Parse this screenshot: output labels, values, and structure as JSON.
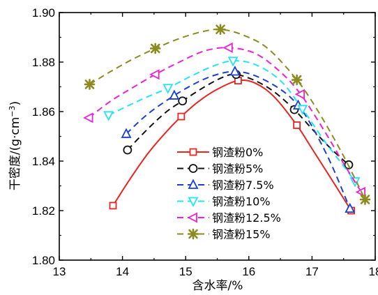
{
  "chart_data": {
    "type": "line",
    "xlabel": "含水率/%",
    "ylabel_main": "干密度/(g·cm",
    "ylabel_sup": "−3",
    "ylabel_close": ")",
    "xlim": [
      13,
      18
    ],
    "ylim": [
      1.8,
      1.9
    ],
    "xticks": [
      "13",
      "14",
      "15",
      "16",
      "17",
      "18"
    ],
    "yticks": [
      "1.80",
      "1.82",
      "1.84",
      "1.86",
      "1.88",
      "1.90"
    ],
    "legend_position": "center-right",
    "series": [
      {
        "name": "钢渣粉0%",
        "color": "#e8251f",
        "marker": "square",
        "line": "solid",
        "x": [
          13.85,
          14.93,
          15.83,
          16.76,
          17.62
        ],
        "y": [
          1.822,
          1.858,
          1.8725,
          1.8545,
          1.82
        ],
        "curve": [
          [
            13.85,
            1.822
          ],
          [
            14.1,
            1.832
          ],
          [
            14.4,
            1.843
          ],
          [
            14.7,
            1.852
          ],
          [
            14.93,
            1.858
          ],
          [
            15.2,
            1.864
          ],
          [
            15.5,
            1.869
          ],
          [
            15.83,
            1.8725
          ],
          [
            16.1,
            1.8715
          ],
          [
            16.4,
            1.866
          ],
          [
            16.76,
            1.8545
          ],
          [
            17.0,
            1.845
          ],
          [
            17.3,
            1.833
          ],
          [
            17.62,
            1.82
          ]
        ]
      },
      {
        "name": "钢渣粉5%",
        "color": "#111111",
        "marker": "circle",
        "line": "dashed",
        "x": [
          14.08,
          14.95,
          15.8,
          16.72,
          17.58
        ],
        "y": [
          1.8445,
          1.8643,
          1.875,
          1.8608,
          1.8385
        ],
        "curve": [
          [
            14.08,
            1.8445
          ],
          [
            14.4,
            1.853
          ],
          [
            14.7,
            1.86
          ],
          [
            14.95,
            1.8643
          ],
          [
            15.3,
            1.87
          ],
          [
            15.6,
            1.874
          ],
          [
            15.8,
            1.875
          ],
          [
            16.1,
            1.8725
          ],
          [
            16.4,
            1.868
          ],
          [
            16.72,
            1.8608
          ],
          [
            17.0,
            1.853
          ],
          [
            17.3,
            1.845
          ],
          [
            17.58,
            1.8385
          ]
        ]
      },
      {
        "name": "钢渣粉7.5%",
        "color": "#1a3fd6",
        "marker": "triangle-up",
        "line": "dashed",
        "x": [
          14.06,
          14.82,
          15.78,
          16.78,
          17.6
        ],
        "y": [
          1.851,
          1.8665,
          1.8762,
          1.8625,
          1.8208
        ],
        "curve": [
          [
            14.06,
            1.851
          ],
          [
            14.4,
            1.859
          ],
          [
            14.82,
            1.8665
          ],
          [
            15.2,
            1.872
          ],
          [
            15.5,
            1.875
          ],
          [
            15.78,
            1.8762
          ],
          [
            16.1,
            1.8745
          ],
          [
            16.5,
            1.869
          ],
          [
            16.78,
            1.8625
          ],
          [
            17.0,
            1.854
          ],
          [
            17.3,
            1.839
          ],
          [
            17.6,
            1.8208
          ]
        ]
      },
      {
        "name": "钢渣粉10%",
        "color": "#22e4f2",
        "marker": "triangle-down",
        "line": "dashed",
        "x": [
          13.78,
          14.72,
          15.75,
          16.85,
          17.68
        ],
        "y": [
          1.8585,
          1.8695,
          1.8805,
          1.861,
          1.8318
        ],
        "curve": [
          [
            13.78,
            1.8585
          ],
          [
            14.1,
            1.8625
          ],
          [
            14.4,
            1.866
          ],
          [
            14.72,
            1.8695
          ],
          [
            15.1,
            1.8745
          ],
          [
            15.45,
            1.8785
          ],
          [
            15.75,
            1.8805
          ],
          [
            16.1,
            1.879
          ],
          [
            16.5,
            1.8725
          ],
          [
            16.85,
            1.861
          ],
          [
            17.2,
            1.848
          ],
          [
            17.5,
            1.838
          ],
          [
            17.68,
            1.8318
          ]
        ]
      },
      {
        "name": "钢渣粉12.5%",
        "color": "#ef1fd6",
        "marker": "triangle-left",
        "line": "dashed",
        "x": [
          13.47,
          14.52,
          15.68,
          16.82,
          17.78
        ],
        "y": [
          1.8575,
          1.875,
          1.8858,
          1.867,
          1.8275
        ],
        "curve": [
          [
            13.47,
            1.8575
          ],
          [
            13.8,
            1.864
          ],
          [
            14.15,
            1.8695
          ],
          [
            14.52,
            1.875
          ],
          [
            14.9,
            1.88
          ],
          [
            15.3,
            1.8845
          ],
          [
            15.68,
            1.8858
          ],
          [
            16.1,
            1.8835
          ],
          [
            16.5,
            1.876
          ],
          [
            16.82,
            1.867
          ],
          [
            17.2,
            1.852
          ],
          [
            17.5,
            1.839
          ],
          [
            17.78,
            1.8275
          ]
        ]
      },
      {
        "name": "钢渣粉15%",
        "color": "#8b8b1f",
        "marker": "star",
        "line": "dashed",
        "x": [
          13.48,
          14.52,
          15.55,
          16.76,
          17.84
        ],
        "y": [
          1.871,
          1.8855,
          1.8932,
          1.8728,
          1.8245
        ],
        "curve": [
          [
            13.48,
            1.871
          ],
          [
            13.8,
            1.876
          ],
          [
            14.15,
            1.881
          ],
          [
            14.52,
            1.8855
          ],
          [
            14.9,
            1.8895
          ],
          [
            15.25,
            1.8922
          ],
          [
            15.55,
            1.8932
          ],
          [
            15.9,
            1.891
          ],
          [
            16.3,
            1.8855
          ],
          [
            16.76,
            1.8728
          ],
          [
            17.1,
            1.86
          ],
          [
            17.5,
            1.842
          ],
          [
            17.84,
            1.8245
          ]
        ]
      }
    ]
  }
}
